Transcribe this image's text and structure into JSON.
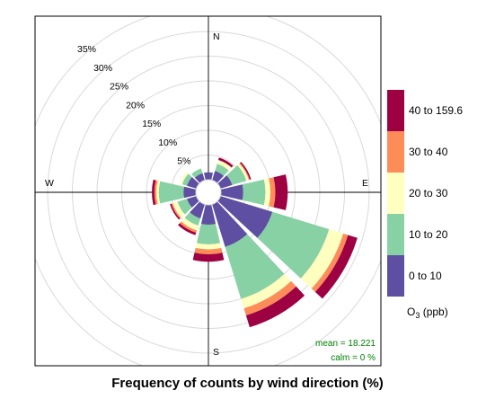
{
  "chart_data": {
    "type": "polar-stacked-bar",
    "title": "",
    "caption": "Frequency of counts by wind direction (%)",
    "directions": [
      "N",
      "E",
      "S",
      "W"
    ],
    "radial_ticks": [
      "5%",
      "10%",
      "15%",
      "20%",
      "25%",
      "30%",
      "35%"
    ],
    "radial_max": 35,
    "legend": {
      "title": "O₃ (ppb)",
      "title_main": "O",
      "title_sub": "3",
      "title_rest": " (ppb)",
      "bins": [
        {
          "label": "0 to 10",
          "color": "#5e4fa2"
        },
        {
          "label": "10 to 20",
          "color": "#88d1a4"
        },
        {
          "label": "20 to 30",
          "color": "#ffffbf"
        },
        {
          "label": "30 to 40",
          "color": "#fd8c59"
        },
        {
          "label": "40 to 159.6",
          "color": "#9e0142"
        }
      ]
    },
    "sectors": [
      {
        "angle": 0,
        "values": [
          1.5,
          0,
          0,
          0,
          0
        ]
      },
      {
        "angle": 30,
        "values": [
          2.0,
          1.5,
          0.8,
          0,
          0.5
        ]
      },
      {
        "angle": 60,
        "values": [
          2.5,
          3.0,
          0.5,
          0.2,
          0.3
        ]
      },
      {
        "angle": 90,
        "values": [
          4.5,
          4.5,
          1.0,
          1.0,
          2.5
        ]
      },
      {
        "angle": 120,
        "values": [
          11.0,
          12.0,
          3.0,
          1.0,
          2.0
        ]
      },
      {
        "angle": 150,
        "values": [
          9.0,
          11.0,
          2.0,
          1.5,
          2.5
        ]
      },
      {
        "angle": 180,
        "values": [
          4.0,
          4.0,
          1.0,
          1.0,
          1.5
        ]
      },
      {
        "angle": 210,
        "values": [
          3.0,
          1.5,
          1.0,
          0.5,
          0.5
        ]
      },
      {
        "angle": 240,
        "values": [
          2.0,
          2.0,
          1.0,
          0.3,
          0.3
        ]
      },
      {
        "angle": 270,
        "values": [
          2.5,
          5.0,
          0.5,
          0.4,
          0.5
        ]
      },
      {
        "angle": 300,
        "values": [
          2.0,
          1.0,
          0.5,
          0,
          0
        ]
      },
      {
        "angle": 330,
        "values": [
          1.5,
          1.0,
          0,
          0,
          0
        ]
      }
    ],
    "stats": {
      "mean": "mean  =  18.221",
      "calm": "calm =  0 %"
    }
  }
}
